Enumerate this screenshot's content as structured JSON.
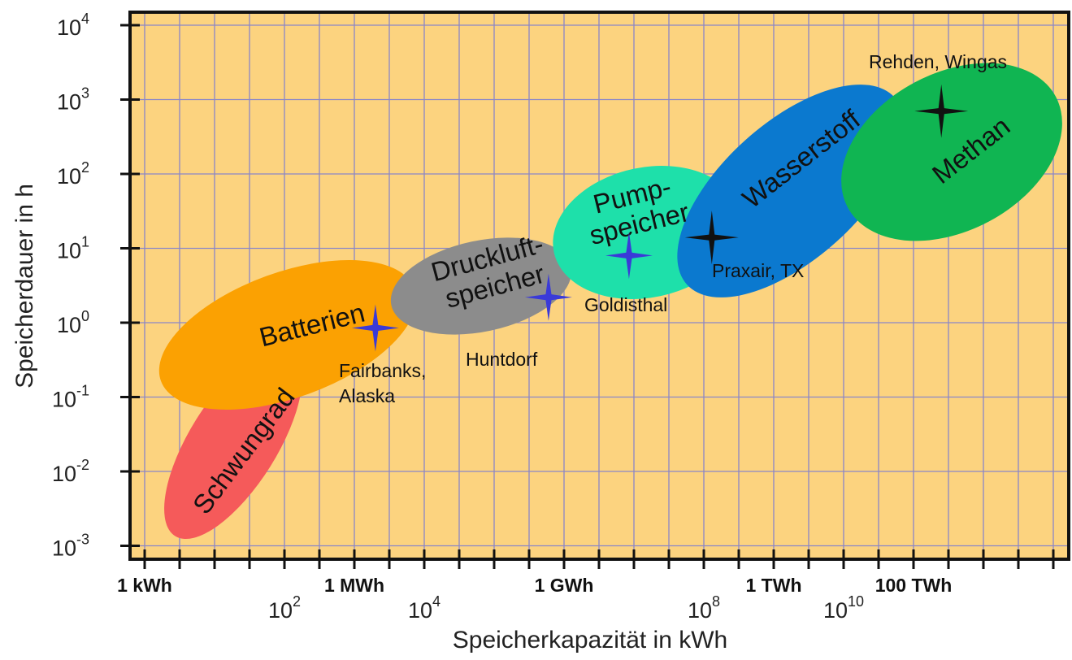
{
  "chart_data": {
    "type": "scatter",
    "xlabel": "Speicherkapazität in kWh",
    "ylabel": "Speicherdauer in h",
    "x_scale": "log",
    "y_scale": "log",
    "xlim_kwh": [
      0.5,
      20000000000000.0
    ],
    "ylim_h": [
      0.0008,
      15000
    ],
    "grid": true,
    "colors": {
      "background": "#fcd37f",
      "grid": "#8a86c8",
      "axis": "#111111"
    },
    "y_ticks": [
      {
        "base": "10",
        "exp": "4"
      },
      {
        "base": "10",
        "exp": "3"
      },
      {
        "base": "10",
        "exp": "2"
      },
      {
        "base": "10",
        "exp": "1"
      },
      {
        "base": "10",
        "exp": "0"
      },
      {
        "base": "10",
        "exp": "-1"
      },
      {
        "base": "10",
        "exp": "-2"
      },
      {
        "base": "10",
        "exp": "-3"
      }
    ],
    "x_unit_ticks": [
      "1 kWh",
      "1 MWh",
      "1 GWh",
      "1 TWh",
      "100 TWh"
    ],
    "x_power_ticks": [
      {
        "base": "10",
        "exp": "2"
      },
      {
        "base": "10",
        "exp": "4"
      },
      {
        "base": "10",
        "exp": "8"
      },
      {
        "base": "10",
        "exp": "10"
      }
    ],
    "regions": [
      {
        "name": "Schwungrad",
        "color": "#f55a5a"
      },
      {
        "name": "Batterien",
        "color": "#fba102"
      },
      {
        "name": "Druckluft-\nspeicher",
        "color": "#8c8c8c"
      },
      {
        "name": "Pump-\nspeicher",
        "color": "#1ee0aa"
      },
      {
        "name": "Wasserstoff",
        "color": "#0b79cf"
      },
      {
        "name": "Methan",
        "color": "#10b552"
      }
    ],
    "points": [
      {
        "label": "Fairbanks,\nAlaska",
        "x": 2000,
        "y": 0.85,
        "color": "#3a3ad8"
      },
      {
        "label": "Huntdorf",
        "x": 600000,
        "y": 2.2,
        "color": "#3a3ad8"
      },
      {
        "label": "Goldisthal",
        "x": 8500000,
        "y": 8,
        "color": "#3a3ad8"
      },
      {
        "label": "Praxair, TX",
        "x": 130000000,
        "y": 14,
        "color": "#111111"
      },
      {
        "label": "Rehden, Wingas",
        "x": 250000000000,
        "y": 700,
        "color": "#111111"
      }
    ]
  }
}
